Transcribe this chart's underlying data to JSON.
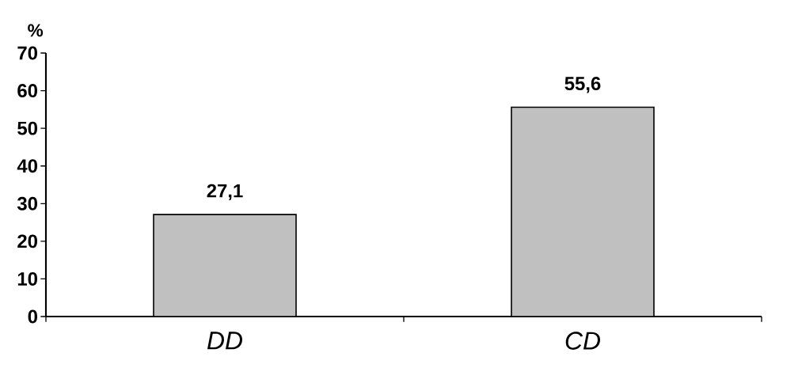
{
  "chart_data": {
    "type": "bar",
    "ylabel": "%",
    "categories": [
      "DD",
      "CD"
    ],
    "values": [
      27.1,
      55.6
    ],
    "color": "#c0c0c0",
    "value_labels": [
      "27,1",
      "55,6"
    ],
    "ylim": [
      0,
      70
    ],
    "yticks": [
      0,
      10,
      20,
      30,
      40,
      50,
      60,
      70
    ]
  }
}
